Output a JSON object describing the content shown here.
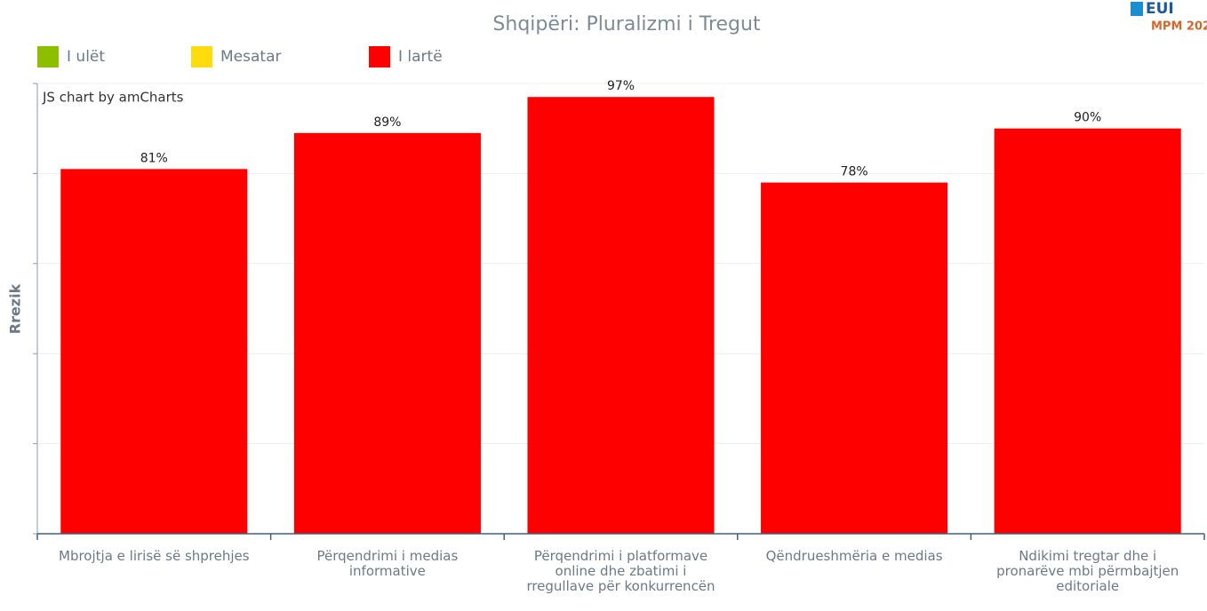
{
  "chart_data": {
    "type": "bar",
    "title": "Shqipëri: Pluralizmi i Tregut",
    "logo": {
      "name": "EUI",
      "edition": "MPM 202"
    },
    "credit": "JS chart by amCharts",
    "y_label": "Rrezik",
    "legend": [
      {
        "name": "I ulët",
        "color": "#8cbf00"
      },
      {
        "name": "Mesatar",
        "color": "#ffdd0c"
      },
      {
        "name": "I lartë",
        "color": "#ff0000"
      }
    ],
    "categories": [
      "Mbrojtja e lirisë së shprehjes",
      "Përqendrimi i medias informative",
      "Përqendrimi i platformave online dhe zbatimi i rregullave për konkurrencën",
      "Qëndrueshmëria e medias",
      "Ndikimi tregtar dhe i pronarëve mbi përmbajtjen editoriale"
    ],
    "values": [
      81,
      89,
      97,
      78,
      90
    ],
    "value_labels": [
      "81%",
      "89%",
      "97%",
      "78%",
      "90%"
    ],
    "color": "#ff0000",
    "ylim": [
      0,
      100
    ],
    "yticks": [
      0,
      20,
      40,
      60,
      80,
      100
    ],
    "grid": true
  }
}
